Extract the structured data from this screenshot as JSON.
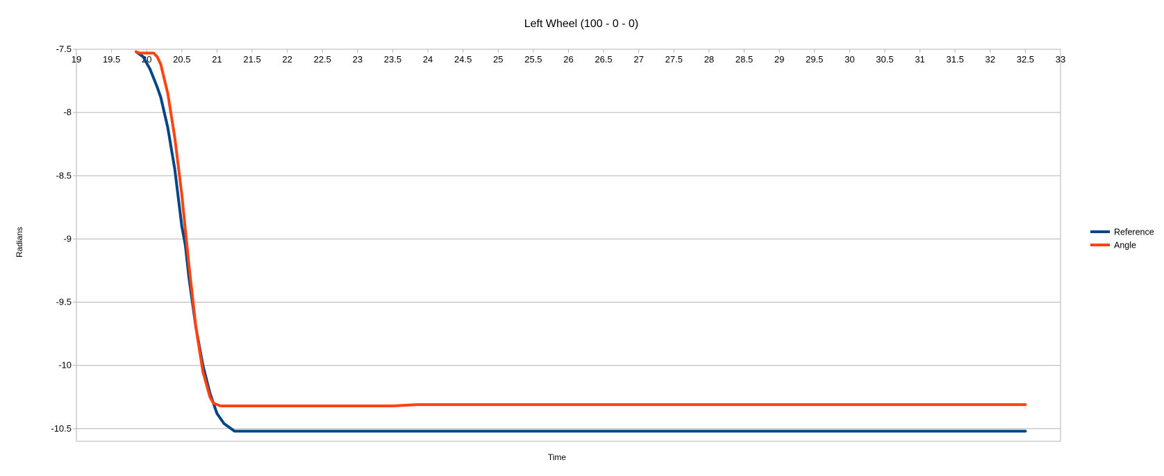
{
  "chart_data": {
    "type": "line",
    "title": "Left Wheel (100 - 0 - 0)",
    "xlabel": "Time",
    "ylabel": "Radians",
    "xlim": [
      19,
      33
    ],
    "ylim": [
      -10.6,
      -7.5
    ],
    "x_ticks": [
      "19",
      "19.5",
      "20",
      "20.5",
      "21",
      "21.5",
      "22",
      "22.5",
      "23",
      "23.5",
      "24",
      "24.5",
      "25",
      "25.5",
      "26",
      "26.5",
      "27",
      "27.5",
      "28",
      "28.5",
      "29",
      "29.5",
      "30",
      "30.5",
      "31",
      "31.5",
      "32",
      "32.5",
      "33"
    ],
    "y_ticks": [
      "-7.5",
      "-8",
      "-8.5",
      "-9",
      "-9.5",
      "-10",
      "-10.5"
    ],
    "x_axis_position": "top",
    "grid": "horizontal",
    "legend_position": "right",
    "colors": {
      "Reference": "#004586",
      "Angle": "#ff420e",
      "grid": "#b3b3b3",
      "frame": "#b3b3b3"
    },
    "series": [
      {
        "name": "Reference",
        "color": "#004586",
        "x": [
          19.85,
          19.95,
          20.05,
          20.15,
          20.2,
          20.3,
          20.4,
          20.5,
          20.55,
          20.6,
          20.7,
          20.8,
          20.9,
          21.0,
          21.1,
          21.2,
          21.25,
          32.5
        ],
        "y": [
          -7.52,
          -7.56,
          -7.66,
          -7.8,
          -7.88,
          -8.12,
          -8.45,
          -8.9,
          -9.05,
          -9.3,
          -9.7,
          -10.0,
          -10.22,
          -10.38,
          -10.46,
          -10.5,
          -10.52,
          -10.52
        ]
      },
      {
        "name": "Angle",
        "color": "#ff420e",
        "x": [
          19.85,
          19.9,
          20.0,
          20.1,
          20.15,
          20.2,
          20.3,
          20.4,
          20.5,
          20.6,
          20.7,
          20.8,
          20.9,
          20.95,
          21.05,
          23.5,
          23.85,
          32.5
        ],
        "y": [
          -7.52,
          -7.53,
          -7.53,
          -7.53,
          -7.56,
          -7.62,
          -7.85,
          -8.2,
          -8.65,
          -9.2,
          -9.7,
          -10.05,
          -10.25,
          -10.3,
          -10.32,
          -10.32,
          -10.31,
          -10.31
        ]
      }
    ]
  }
}
